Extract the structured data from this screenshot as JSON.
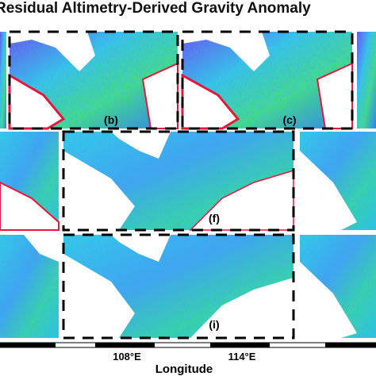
{
  "title": "Residual Altimetry-Derived Gravity Anomaly",
  "panels": [
    {
      "label": "(b)"
    },
    {
      "label": "(c)"
    },
    {
      "label": "(f)"
    },
    {
      "label": "(i)"
    }
  ],
  "x_axis": {
    "label": "Longitude",
    "ticks": [
      "108°E",
      "114°E"
    ]
  }
}
